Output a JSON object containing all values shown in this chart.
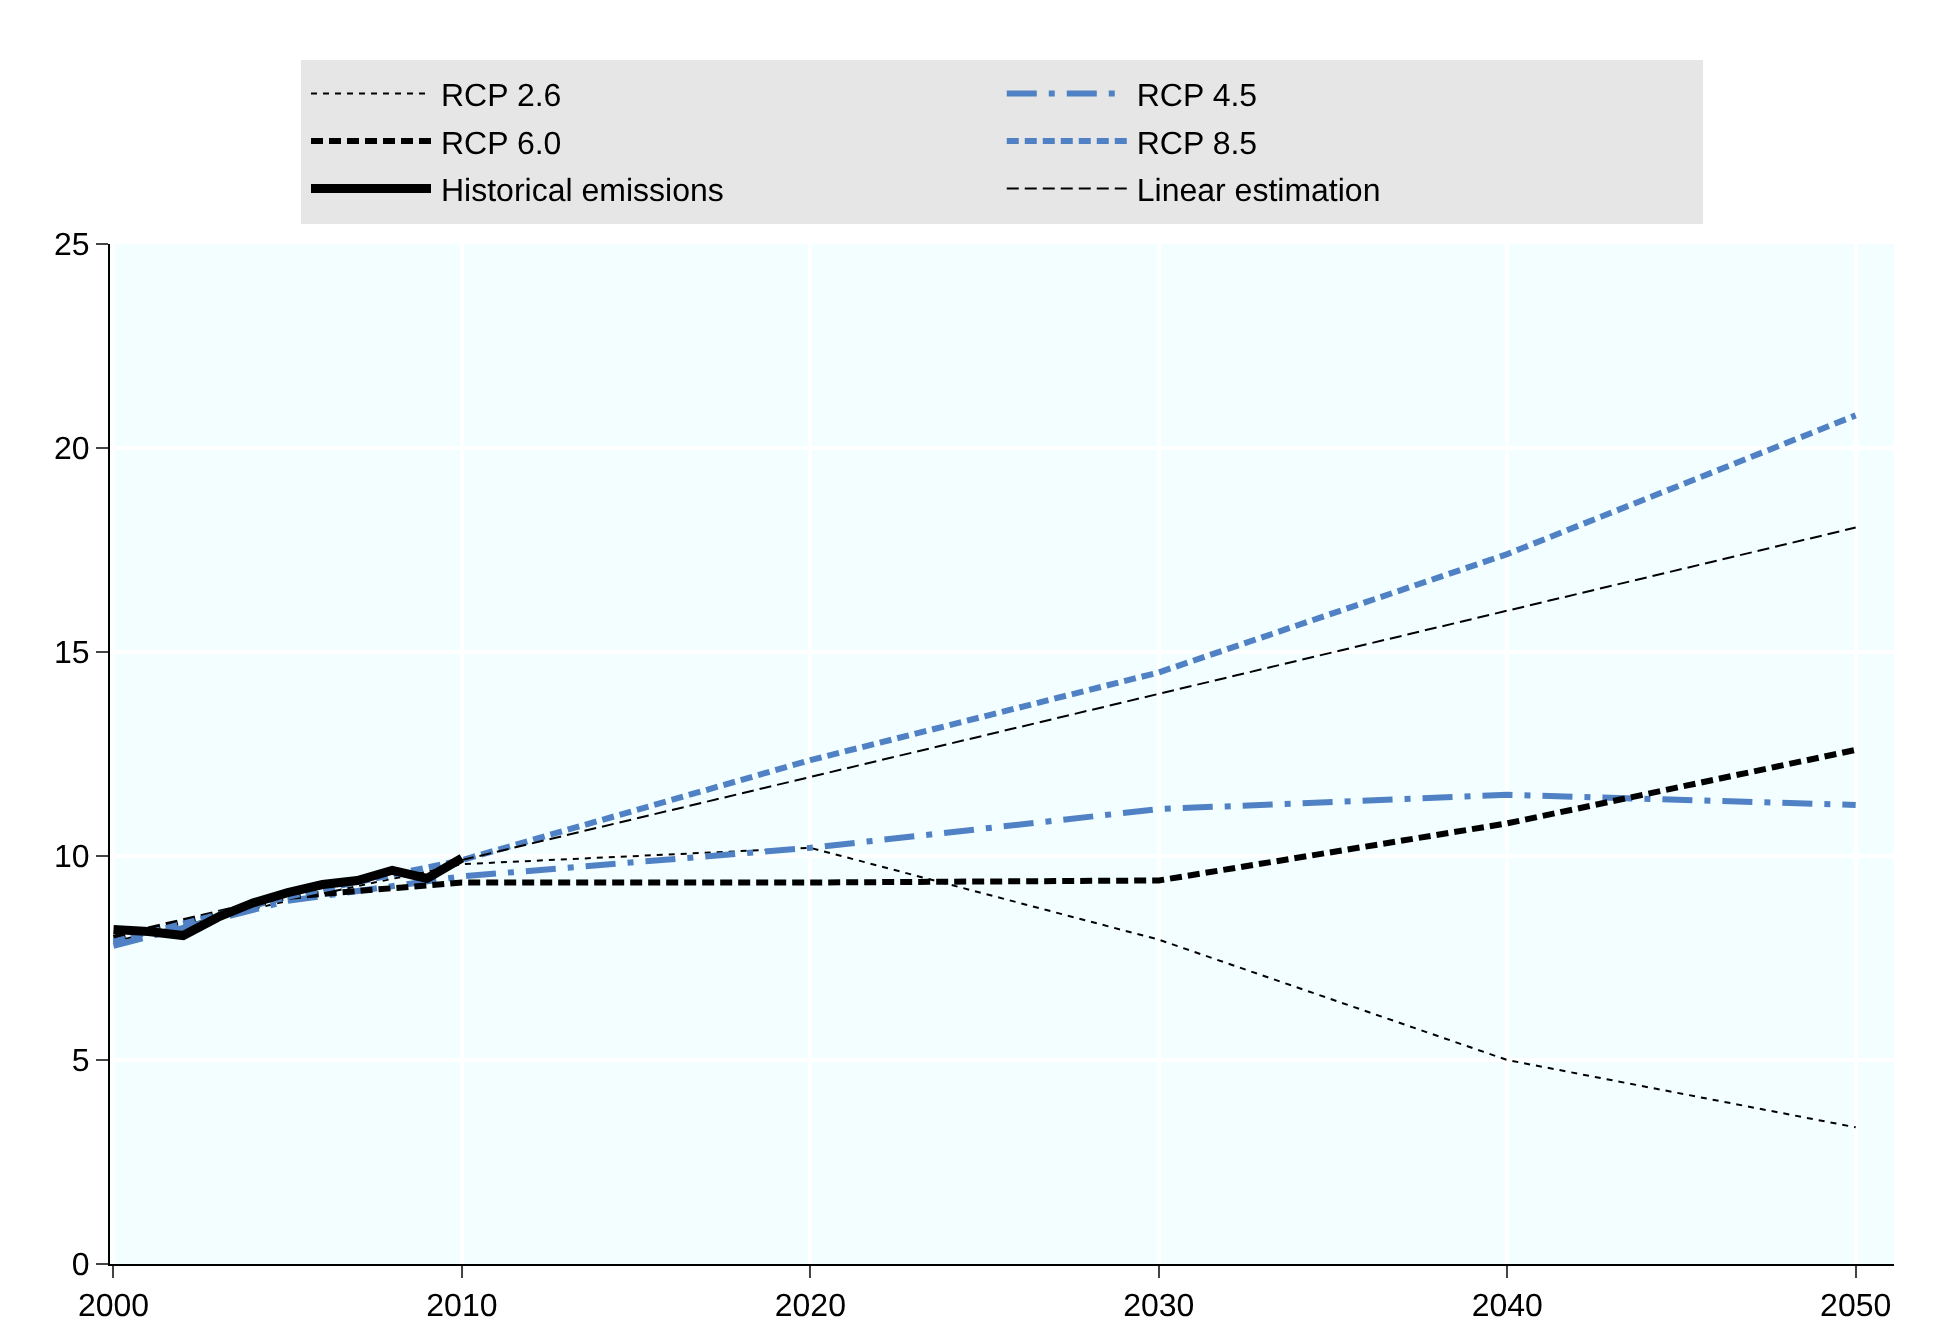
{
  "chart_data": {
    "type": "line",
    "xlim": [
      1999.9,
      2051.1
    ],
    "xticks": [
      2000,
      2010,
      2020,
      2030,
      2040,
      2050
    ],
    "ylim": [
      0,
      25
    ],
    "yticks": [
      0,
      5,
      10,
      15,
      20,
      25
    ],
    "grid": true,
    "legend": "top",
    "marker": "none",
    "series": [
      {
        "name": "RCP 2.6",
        "color": "#000000",
        "line_style": "dotted",
        "x": [
          2000,
          2005,
          2010,
          2020,
          2030,
          2040,
          2050
        ],
        "values": [
          7.9,
          8.9,
          9.8,
          10.2,
          7.95,
          5.0,
          3.35
        ]
      },
      {
        "name": "RCP 4.5",
        "color": "#4f81c4",
        "line_style": "dashdot",
        "x": [
          2000,
          2005,
          2010,
          2020,
          2030,
          2040,
          2050
        ],
        "values": [
          7.8,
          8.9,
          9.5,
          10.2,
          11.15,
          11.5,
          11.25
        ]
      },
      {
        "name": "RCP 6.0",
        "color": "#000000",
        "line_style": "dashed",
        "x": [
          2000,
          2005,
          2010,
          2020,
          2030,
          2040,
          2050
        ],
        "values": [
          8.0,
          9.0,
          9.35,
          9.35,
          9.4,
          10.8,
          12.6
        ]
      },
      {
        "name": "RCP 8.5",
        "color": "#4f81c4",
        "line_style": "dashed",
        "x": [
          2000,
          2005,
          2010,
          2020,
          2030,
          2040,
          2050
        ],
        "values": [
          7.9,
          9.0,
          9.9,
          12.35,
          14.5,
          17.4,
          20.8
        ]
      },
      {
        "name": "Historical emissions",
        "color": "#000000",
        "line_style": "solid",
        "x": [
          2000,
          2001,
          2002,
          2003,
          2004,
          2005,
          2006,
          2007,
          2008,
          2009,
          2010
        ],
        "values": [
          8.2,
          8.15,
          8.05,
          8.5,
          8.85,
          9.1,
          9.3,
          9.4,
          9.65,
          9.45,
          9.95
        ]
      },
      {
        "name": "Linear estimation",
        "color": "#000000",
        "line_style": "dashed",
        "x": [
          2010,
          2050
        ],
        "values": [
          9.9,
          18.05
        ]
      }
    ]
  }
}
